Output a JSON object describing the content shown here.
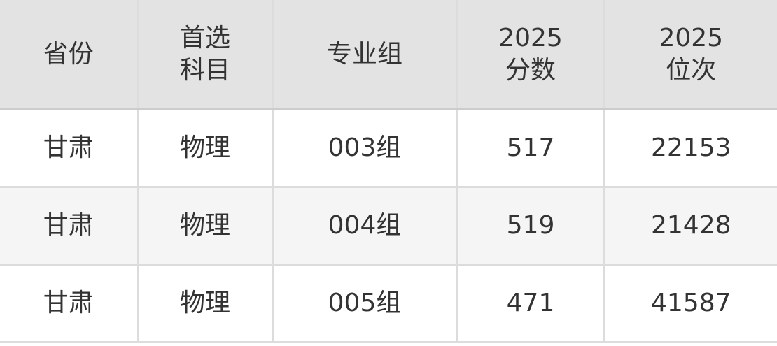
{
  "table": {
    "headers": [
      [
        "省份"
      ],
      [
        "首选",
        "科目"
      ],
      [
        "专业组"
      ],
      [
        "2025",
        "分数"
      ],
      [
        "2025",
        "位次"
      ]
    ],
    "rows": [
      [
        "甘肃",
        "物理",
        "003组",
        "517",
        "22153"
      ],
      [
        "甘肃",
        "物理",
        "004组",
        "519",
        "21428"
      ],
      [
        "甘肃",
        "物理",
        "005组",
        "471",
        "41587"
      ]
    ]
  }
}
